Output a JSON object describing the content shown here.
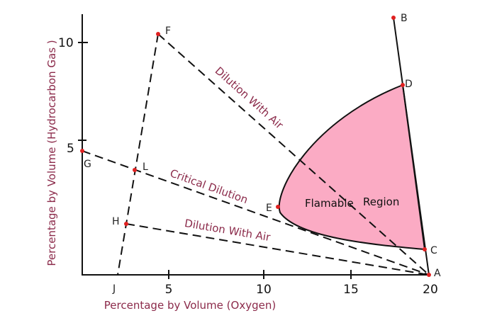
{
  "axes": {
    "y_label": "Percentage by Volume   (Hydrocarbon Gas )",
    "x_label": "Percentage by Volume  (Oxygen)",
    "y_ticks": [
      "10",
      "5"
    ],
    "x_ticks": [
      "5",
      "10",
      "15",
      "20"
    ]
  },
  "points": [
    "A",
    "B",
    "C",
    "D",
    "E",
    "F",
    "G",
    "H",
    "J",
    "L"
  ],
  "lines": {
    "upper": "Dilution With Air",
    "critical": "Critical Dilution",
    "lower": "Dilution With Air"
  },
  "region": {
    "word1": "Flamable",
    "word2": "Region"
  }
}
